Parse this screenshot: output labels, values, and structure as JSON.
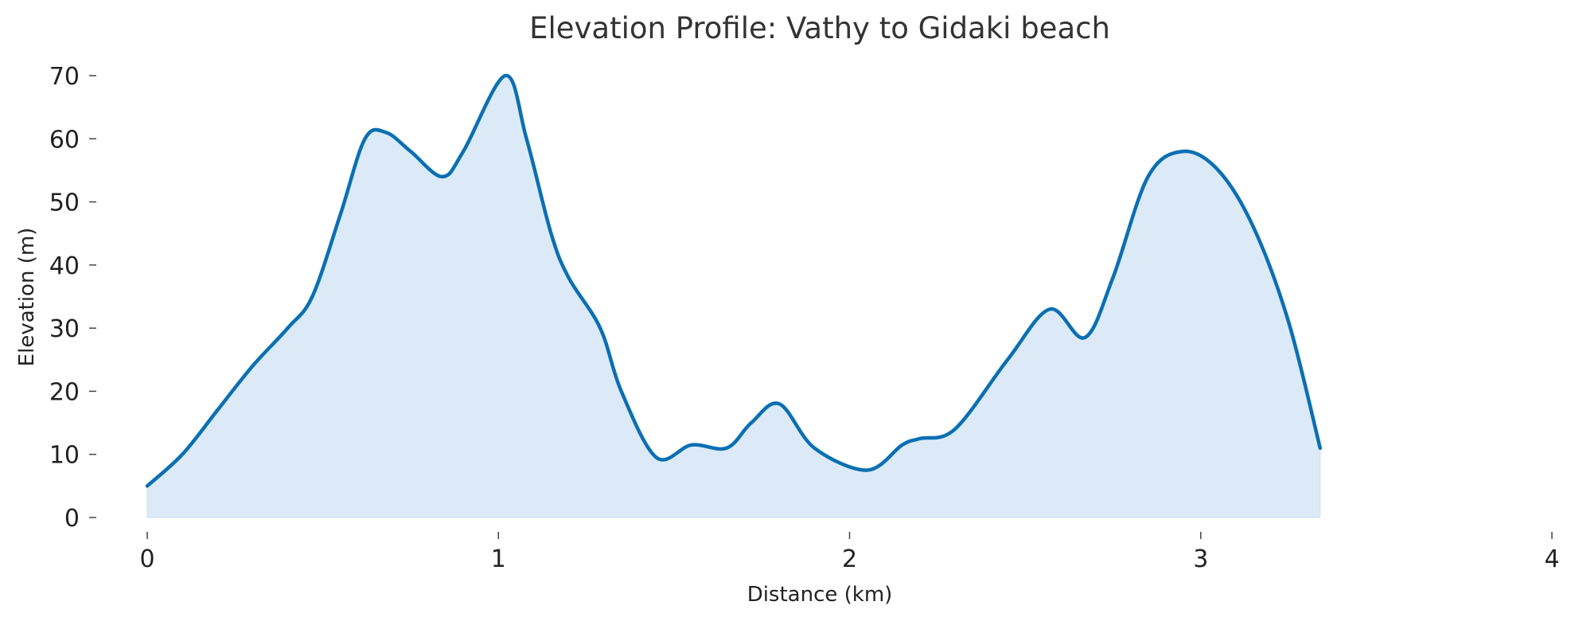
{
  "chart_data": {
    "type": "area",
    "title": "Elevation Profile: Vathy to Gidaki beach",
    "xlabel": "Distance (km)",
    "ylabel": "Elevation (m)",
    "xlim": [
      0,
      4
    ],
    "ylim": [
      0,
      70
    ],
    "xticks": [
      0,
      1,
      2,
      3,
      4
    ],
    "yticks": [
      0,
      10,
      20,
      30,
      40,
      50,
      60,
      70
    ],
    "grid": false,
    "line_color": "#0b6fb3",
    "fill_color": "#dceaf7",
    "series": [
      {
        "x": [
          0,
          0.1,
          0.2,
          0.3,
          0.4,
          0.47,
          0.55,
          0.62,
          0.68,
          0.75,
          0.84,
          0.9,
          1.02,
          1.08,
          1.15,
          1.2,
          1.29,
          1.35,
          1.45,
          1.55,
          1.65,
          1.72,
          1.8,
          1.9,
          2.05,
          2.15,
          2.2,
          2.3,
          2.45,
          2.57,
          2.67,
          2.75,
          2.85,
          2.95,
          3.05,
          3.15,
          3.25,
          3.34
        ],
        "y": [
          5,
          10,
          17,
          24,
          30,
          35,
          48,
          60,
          61,
          58,
          54,
          58,
          70,
          60,
          45,
          38,
          30,
          20,
          9.5,
          11.5,
          11,
          15,
          18,
          11,
          7.5,
          11.5,
          12.5,
          14,
          25,
          33,
          28.5,
          38,
          54,
          58,
          55,
          46,
          31,
          11
        ]
      }
    ]
  }
}
